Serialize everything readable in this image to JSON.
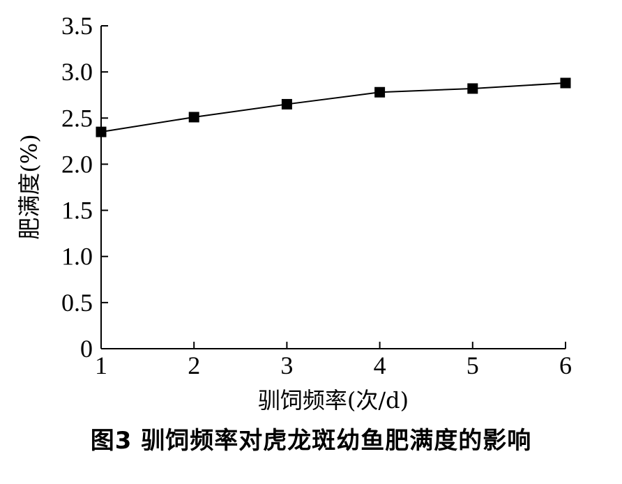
{
  "chart_data": {
    "type": "line",
    "title": "",
    "caption": "图3   驯饲频率对虎龙斑幼鱼肥满度的影响",
    "xlabel": "驯饲频率(次/d)",
    "ylabel": "肥满度(%)",
    "x": [
      1,
      2,
      3,
      4,
      5,
      6
    ],
    "series": [
      {
        "values": [
          2.35,
          2.51,
          2.65,
          2.78,
          2.82,
          2.88
        ]
      }
    ],
    "xlim": [
      1,
      6
    ],
    "ylim": [
      0,
      3.5
    ],
    "xticks": [
      "1",
      "2",
      "3",
      "4",
      "5",
      "6"
    ],
    "yticks": [
      "0",
      "0.5",
      "1.0",
      "1.5",
      "2.0",
      "2.5",
      "3.0",
      "3.5"
    ],
    "marker": "square",
    "color": "#000000",
    "grid": false,
    "legend": "none"
  }
}
